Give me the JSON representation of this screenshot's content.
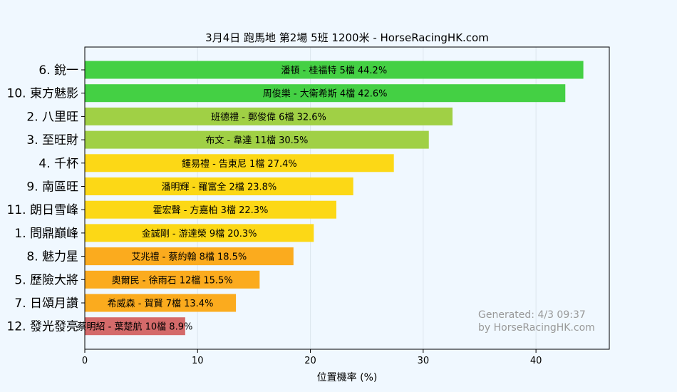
{
  "chart_data": {
    "type": "bar",
    "orientation": "horizontal",
    "title": "3月4日  跑馬地  第2場  5班  1200米 - HorseRacingHK.com",
    "xlabel": "位置機率 (%)",
    "ylabel": "",
    "xlim": [
      0,
      46.5
    ],
    "xticks": [
      "0",
      "10",
      "20",
      "30",
      "40"
    ],
    "grid": true,
    "categories": [
      "6. 銳一",
      "10. 東方魅影",
      "2. 八里旺",
      "3. 至旺財",
      "4. 千杯",
      "9. 南區旺",
      "11. 朗日雪峰",
      "1. 問鼎巔峰",
      "8. 魅力星",
      "5. 歷險大將",
      "7. 日頌月讚",
      "12. 發光發亮"
    ],
    "values": [
      44.2,
      42.6,
      32.6,
      30.5,
      27.4,
      23.8,
      22.3,
      20.3,
      18.5,
      15.5,
      13.4,
      8.9
    ],
    "bar_labels": [
      "潘頓 - 桂福特 5檔  44.2%",
      "周俊樂 - 大衛希斯 4檔  42.6%",
      "班德禮 - 鄭俊偉 6檔  32.6%",
      "布文 - 韋達 11檔  30.5%",
      "鍾易禮 - 告東尼 1檔  27.4%",
      "潘明輝 - 羅富全 2檔  23.8%",
      "霍宏聲 - 方嘉柏 3檔  22.3%",
      "金誠剛 - 游達榮 9檔  20.3%",
      "艾兆禮 - 蔡約翰 8檔  18.5%",
      "奧爾民 - 徐雨石 12檔  15.5%",
      "希威森 - 賀賢 7檔  13.4%",
      "蔡明紹 - 葉楚航 10檔  8.9%"
    ],
    "bar_colors": [
      "#44d044",
      "#44d044",
      "#a0d045",
      "#a0d045",
      "#fcd816",
      "#fcd816",
      "#fcd816",
      "#fcd816",
      "#fbab1e",
      "#fbab1e",
      "#fbab1e",
      "#d46a6a"
    ],
    "watermark": [
      "Generated: 4/3 09:37",
      "by HorseRacingHK.com"
    ]
  },
  "colors": {
    "background": "#f0f8ff",
    "axis": "#000000",
    "grid": "#dde6ee",
    "watermark": "#999999"
  }
}
